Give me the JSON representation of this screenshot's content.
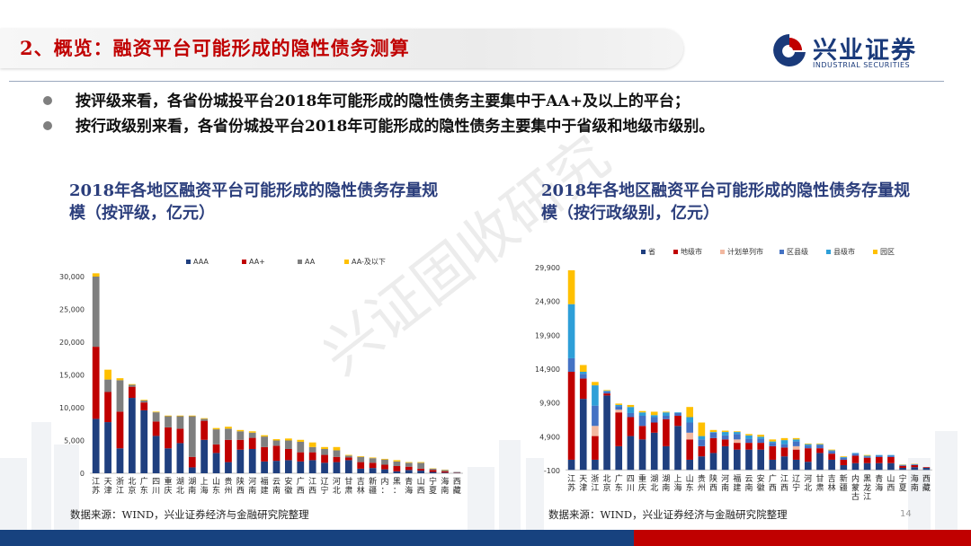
{
  "slide": {
    "title": "2、概览：融资平台可能形成的隐性债务测算",
    "page_number": "14"
  },
  "logo": {
    "name_cn": "兴业证券",
    "name_en": "INDUSTRIAL SECURITIES"
  },
  "bullets": [
    "按评级来看，各省份城投平台2018年可能形成的隐性债务主要集中于AA+及以上的平台；",
    "按行政级别来看，各省份城投平台2018年可能形成的隐性债务主要集中于省级和地级市级别。"
  ],
  "source_left": "数据来源：WIND，兴业证券经济与金融研究院整理",
  "source_right": "数据来源：WIND，兴业证券经济与金融研究院整理",
  "watermark": "兴证固收研究",
  "colors": {
    "brand_blue": "#17427f",
    "brand_red": "#c00000"
  },
  "chart_data": [
    {
      "type": "bar",
      "stacked": true,
      "title_line1": "2018年各地区融资平台可能形成的隐性债务存量规",
      "title_line2": "模（按评级，亿元）",
      "categories": [
        "江苏",
        "天津",
        "浙江",
        "北京",
        "广东",
        "四川",
        "重庆",
        "湖北",
        "湖南",
        "上海",
        "山东",
        "贵州",
        "陕西",
        "河南",
        "福建",
        "云南",
        "安徽",
        "广西",
        "江西",
        "辽宁",
        "河北",
        "甘肃",
        "吉林",
        "新疆",
        "内蒙古",
        "黑龙江",
        "青海",
        "山西",
        "宁夏",
        "海南",
        "西藏"
      ],
      "category_labels": [
        "江苏",
        "天津",
        "浙江",
        "北京",
        "广东",
        "四川",
        "重庆",
        "湖北",
        "湖南",
        "上海",
        "山东",
        "贵州",
        "陕西",
        "河南",
        "福建",
        "云南",
        "安徽",
        "广西",
        "江西",
        "辽宁",
        "河北",
        "甘肃",
        "吉林",
        "新疆",
        "内：",
        "黑：",
        "青海",
        "山西",
        "宁夏",
        "海南",
        "西藏"
      ],
      "series": [
        {
          "name": "AAA",
          "color": "#1f3f7f",
          "values": [
            8300,
            7800,
            3800,
            11500,
            9600,
            5700,
            3800,
            4600,
            900,
            5100,
            3100,
            1700,
            3600,
            3700,
            1800,
            1900,
            2000,
            1800,
            2000,
            1600,
            1700,
            2000,
            700,
            800,
            600,
            300,
            500,
            400,
            200,
            100,
            50
          ]
        },
        {
          "name": "AA+",
          "color": "#c00000",
          "values": [
            11000,
            4600,
            5600,
            1700,
            1200,
            2200,
            3200,
            2200,
            1600,
            2900,
            1300,
            3400,
            1500,
            1700,
            2200,
            2300,
            1700,
            1400,
            1200,
            1200,
            800,
            400,
            1000,
            800,
            700,
            800,
            500,
            300,
            300,
            200,
            50
          ]
        },
        {
          "name": "AA",
          "color": "#7f7f7f",
          "values": [
            10700,
            1900,
            4800,
            300,
            300,
            1400,
            1700,
            1900,
            6200,
            300,
            2300,
            1700,
            1300,
            800,
            1600,
            800,
            1300,
            1600,
            800,
            900,
            1000,
            300,
            800,
            700,
            800,
            700,
            600,
            900,
            200,
            200,
            100
          ]
        },
        {
          "name": "AA-及以下",
          "color": "#ffc000",
          "values": [
            500,
            1500,
            300,
            100,
            100,
            100,
            100,
            100,
            100,
            100,
            200,
            300,
            200,
            200,
            200,
            200,
            300,
            300,
            700,
            300,
            500,
            100,
            100,
            100,
            100,
            200,
            100,
            100,
            50,
            50,
            0
          ]
        }
      ],
      "y_ticks": [
        "0",
        "5,000",
        "10,000",
        "15,000",
        "20,000",
        "25,000",
        "30,000"
      ],
      "ylim": [
        0,
        30000
      ]
    },
    {
      "type": "bar",
      "stacked": true,
      "title_line1": "2018年各地区融资平台可能形成的隐性债务存量规",
      "title_line2": "模（按行政级别，亿元）",
      "categories": [
        "江苏",
        "天津",
        "浙江",
        "北京",
        "广东",
        "四川",
        "重庆",
        "湖北",
        "湖南",
        "上海",
        "山东",
        "贵州",
        "陕西",
        "河南",
        "福建",
        "云南",
        "安徽",
        "广西",
        "江西",
        "辽宁",
        "河北",
        "甘肃",
        "吉林",
        "新疆",
        "内蒙古",
        "黑龙江",
        "青海",
        "山西",
        "宁夏",
        "海南",
        "西藏"
      ],
      "series": [
        {
          "name": "省",
          "color": "#1f3f7f",
          "values": [
            1500,
            10500,
            1500,
            11000,
            3500,
            5000,
            4500,
            5500,
            3500,
            6500,
            1500,
            2000,
            2500,
            3500,
            3000,
            3000,
            3000,
            1500,
            2000,
            1500,
            1200,
            2500,
            1500,
            700,
            1000,
            1000,
            1000,
            1000,
            300,
            400,
            300
          ]
        },
        {
          "name": "地级市",
          "color": "#c00000",
          "values": [
            13000,
            3000,
            3500,
            300,
            5000,
            2800,
            2000,
            1500,
            4000,
            1500,
            3000,
            1500,
            2200,
            1000,
            1000,
            1000,
            1000,
            2000,
            1300,
            1500,
            2000,
            700,
            900,
            800,
            1100,
            800,
            900,
            900,
            300,
            300,
            100
          ]
        },
        {
          "name": "计划单列市",
          "color": "#f2b8a0",
          "values": [
            0,
            0,
            1500,
            0,
            400,
            0,
            0,
            0,
            0,
            0,
            1000,
            0,
            0,
            0,
            500,
            0,
            0,
            0,
            0,
            500,
            0,
            0,
            0,
            0,
            0,
            0,
            0,
            0,
            0,
            0,
            0
          ]
        },
        {
          "name": "区县级",
          "color": "#4472c4",
          "values": [
            2000,
            700,
            3000,
            300,
            500,
            600,
            1500,
            800,
            500,
            400,
            1500,
            1000,
            800,
            600,
            800,
            600,
            600,
            500,
            500,
            700,
            400,
            500,
            400,
            300,
            300,
            200,
            200,
            200,
            100,
            100,
            0
          ]
        },
        {
          "name": "县级市",
          "color": "#2e9fd8",
          "values": [
            8000,
            300,
            3000,
            100,
            200,
            900,
            500,
            300,
            500,
            100,
            800,
            500,
            100,
            500,
            300,
            500,
            300,
            200,
            600,
            300,
            200,
            100,
            100,
            100,
            100,
            100,
            100,
            100,
            50,
            50,
            0
          ]
        },
        {
          "name": "园区",
          "color": "#ffc000",
          "values": [
            5000,
            1000,
            500,
            100,
            200,
            300,
            200,
            500,
            100,
            0,
            1500,
            2000,
            300,
            200,
            100,
            200,
            300,
            300,
            300,
            200,
            100,
            100,
            100,
            100,
            0,
            100,
            0,
            0,
            50,
            50,
            0
          ]
        }
      ],
      "y_ticks": [
        "-100",
        "4,900",
        "9,900",
        "14,900",
        "19,900",
        "24,900",
        "29,900"
      ],
      "ylim": [
        -100,
        29900
      ]
    }
  ]
}
